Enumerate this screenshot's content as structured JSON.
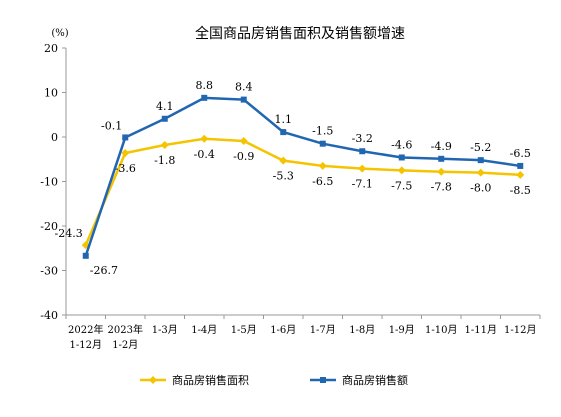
{
  "chart_data": {
    "type": "line",
    "title": "全国商品房销售面积及销售额增速",
    "unit_label": "(%)",
    "ylim": [
      -40,
      20
    ],
    "yticks": [
      20,
      10,
      0,
      -10,
      -20,
      -30,
      -40
    ],
    "categories": [
      [
        "2022年",
        "1-12月"
      ],
      [
        "2023年",
        "1-2月"
      ],
      [
        "1-3月"
      ],
      [
        "1-4月"
      ],
      [
        "1-5月"
      ],
      [
        "1-6月"
      ],
      [
        "1-7月"
      ],
      [
        "1-8月"
      ],
      [
        "1-9月"
      ],
      [
        "1-10月"
      ],
      [
        "1-11月"
      ],
      [
        "1-12月"
      ]
    ],
    "series": [
      {
        "name": "商品房销售面积",
        "color": "#F5C400",
        "marker": "diamond",
        "values": [
          -24.3,
          -3.6,
          -1.8,
          -0.4,
          -0.9,
          -5.3,
          -6.5,
          -7.1,
          -7.5,
          -7.8,
          -8.0,
          -8.5
        ],
        "labels": [
          "-24.3",
          "-3.6",
          "-1.8",
          "-0.4",
          "-0.9",
          "-5.3",
          "-6.5",
          "-7.1",
          "-7.5",
          "-7.8",
          "-8.0",
          "-8.5"
        ]
      },
      {
        "name": "商品房销售额",
        "color": "#2166B0",
        "marker": "square",
        "values": [
          -26.7,
          -0.1,
          4.1,
          8.8,
          8.4,
          1.1,
          -1.5,
          -3.2,
          -4.6,
          -4.9,
          -5.2,
          -6.5
        ],
        "labels": [
          "-26.7",
          "-0.1",
          "4.1",
          "8.8",
          "8.4",
          "1.1",
          "-1.5",
          "-3.2",
          "-4.6",
          "-4.9",
          "-5.2",
          "-6.5"
        ]
      }
    ],
    "grid": false,
    "legend_position": "bottom"
  }
}
